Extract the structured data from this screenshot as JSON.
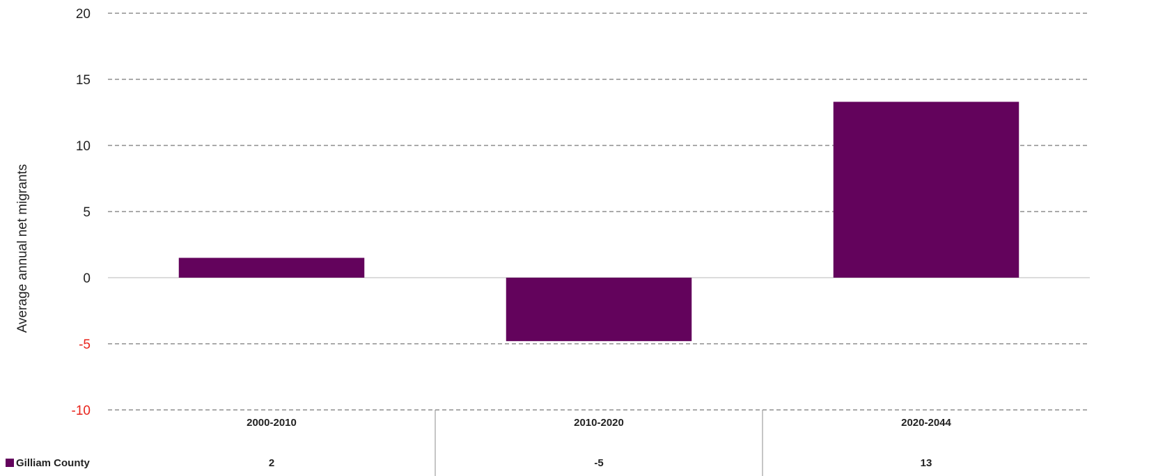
{
  "chart_data": {
    "type": "bar",
    "categories": [
      "2000-2010",
      "2010-2020",
      "2020-2044"
    ],
    "series": [
      {
        "name": "Gilliam County",
        "values": [
          1.5,
          -4.8,
          13.3
        ],
        "table_labels": [
          "2",
          "-5",
          "13"
        ]
      }
    ],
    "ylabel": "Average annual net migrants",
    "ylim": [
      -10,
      20
    ],
    "yticks": [
      20,
      15,
      10,
      5,
      0,
      -5,
      -10
    ],
    "ytick_labels": [
      "20",
      "15",
      "10",
      "5",
      "0",
      "-5",
      "-10"
    ],
    "grid": true,
    "data_table": true,
    "colors": {
      "bar": "#63035c",
      "negative_tick": "#e8231b"
    }
  }
}
